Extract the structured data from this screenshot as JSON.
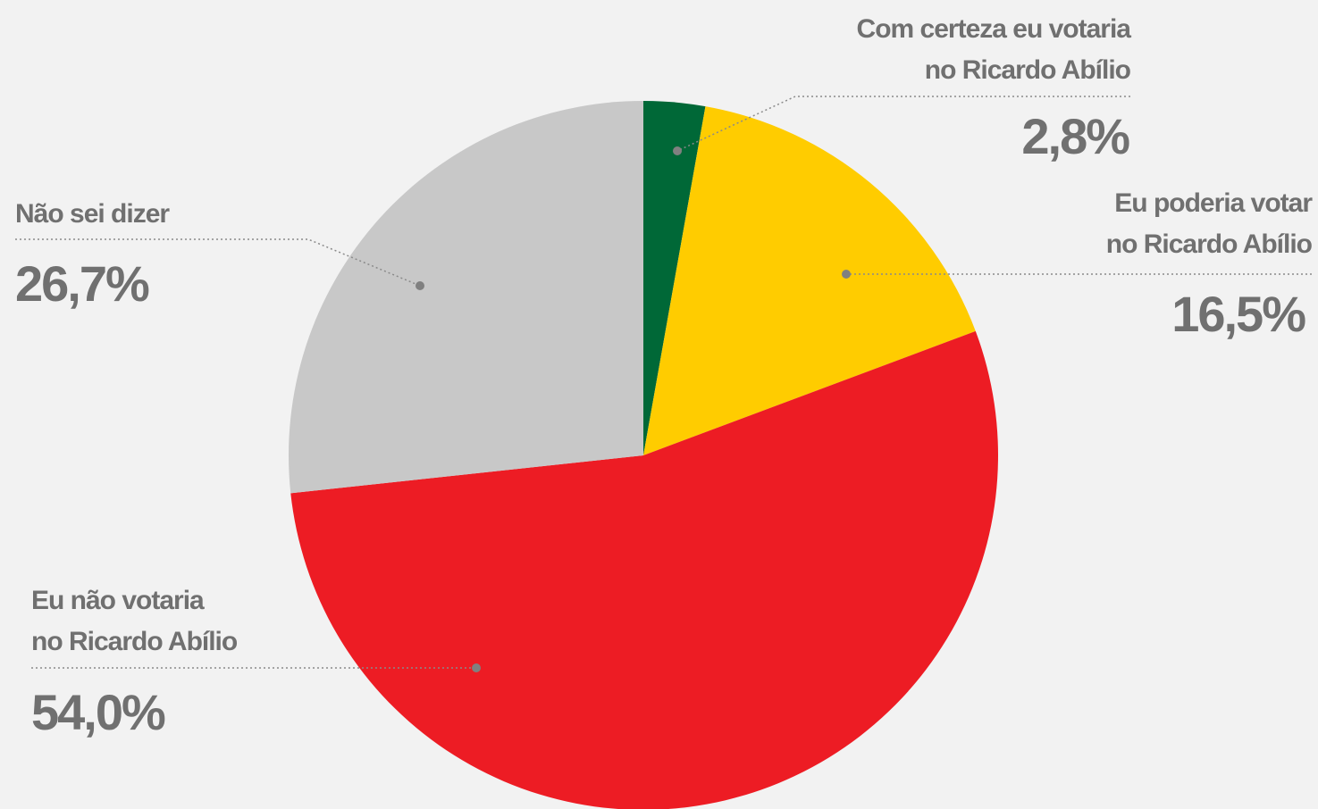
{
  "chart_data": {
    "type": "pie",
    "categories": [
      "Com certeza eu votaria\nno Ricardo Abílio",
      "Eu poderia votar\nno Ricardo Abílio",
      "Eu não votaria\nno Ricardo Abílio",
      "Não sei dizer"
    ],
    "values": [
      2.8,
      16.5,
      54.0,
      26.7
    ],
    "value_labels": [
      "2,8%",
      "16,5%",
      "54,0%",
      "26,7%"
    ],
    "colors": [
      "#006837",
      "#ffcc00",
      "#ed1c24",
      "#c8c8c8"
    ]
  }
}
